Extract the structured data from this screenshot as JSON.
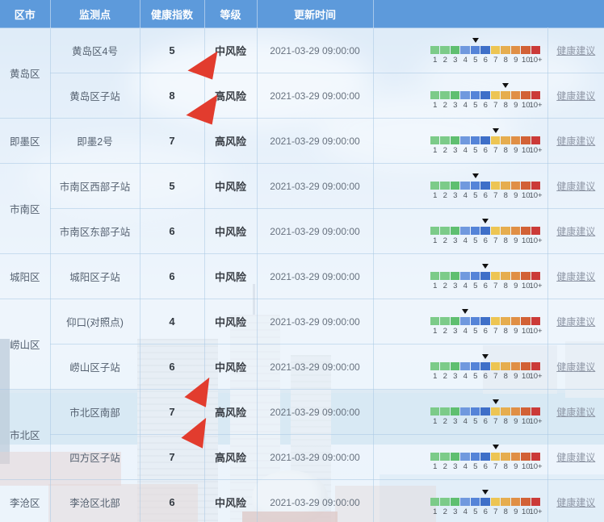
{
  "table": {
    "columns": [
      "区市",
      "监测点",
      "健康指数",
      "等级",
      "更新时间",
      ""
    ]
  },
  "scale": {
    "labels": [
      "1",
      "2",
      "3",
      "4",
      "5",
      "6",
      "7",
      "8",
      "9",
      "10",
      "10+"
    ],
    "colors": [
      "#7CCB89",
      "#7CCB89",
      "#5FBF70",
      "#7099DE",
      "#5584D8",
      "#3E6FC8",
      "#EDC553",
      "#E6AD4F",
      "#E08F45",
      "#D26136",
      "#CB3A38"
    ],
    "marker_color": "#111111",
    "advice_label": "健康建议"
  },
  "theme": {
    "header_bg": "#5D9ADB",
    "header_text": "#FFFFFF",
    "link_color": "#8F97A6",
    "annotation_arrow_color": "#E23C2E"
  },
  "groups": [
    {
      "district": "黄岛区",
      "rows": [
        {
          "station": "黄岛区4号",
          "index": 5,
          "level": "中风险",
          "updated": "2021-03-29 09:00:00"
        },
        {
          "station": "黄岛区子站",
          "index": 8,
          "level": "高风险",
          "updated": "2021-03-29 09:00:00"
        }
      ]
    },
    {
      "district": "即墨区",
      "rows": [
        {
          "station": "即墨2号",
          "index": 7,
          "level": "高风险",
          "updated": "2021-03-29 09:00:00"
        }
      ]
    },
    {
      "district": "市南区",
      "rows": [
        {
          "station": "市南区西部子站",
          "index": 5,
          "level": "中风险",
          "updated": "2021-03-29 09:00:00"
        },
        {
          "station": "市南区东部子站",
          "index": 6,
          "level": "中风险",
          "updated": "2021-03-29 09:00:00"
        }
      ]
    },
    {
      "district": "城阳区",
      "rows": [
        {
          "station": "城阳区子站",
          "index": 6,
          "level": "中风险",
          "updated": "2021-03-29 09:00:00"
        }
      ]
    },
    {
      "district": "崂山区",
      "rows": [
        {
          "station": "仰口(对照点)",
          "index": 4,
          "level": "中风险",
          "updated": "2021-03-29 09:00:00"
        },
        {
          "station": "崂山区子站",
          "index": 6,
          "level": "中风险",
          "updated": "2021-03-29 09:00:00"
        }
      ]
    },
    {
      "district": "市北区",
      "rows": [
        {
          "station": "市北区南部",
          "index": 7,
          "level": "高风险",
          "updated": "2021-03-29 09:00:00"
        },
        {
          "station": "四方区子站",
          "index": 7,
          "level": "高风险",
          "updated": "2021-03-29 09:00:00"
        }
      ]
    },
    {
      "district": "李沧区",
      "rows": [
        {
          "station": "李沧区北部",
          "index": 6,
          "level": "中风险",
          "updated": "2021-03-29 09:00:00"
        }
      ]
    }
  ]
}
